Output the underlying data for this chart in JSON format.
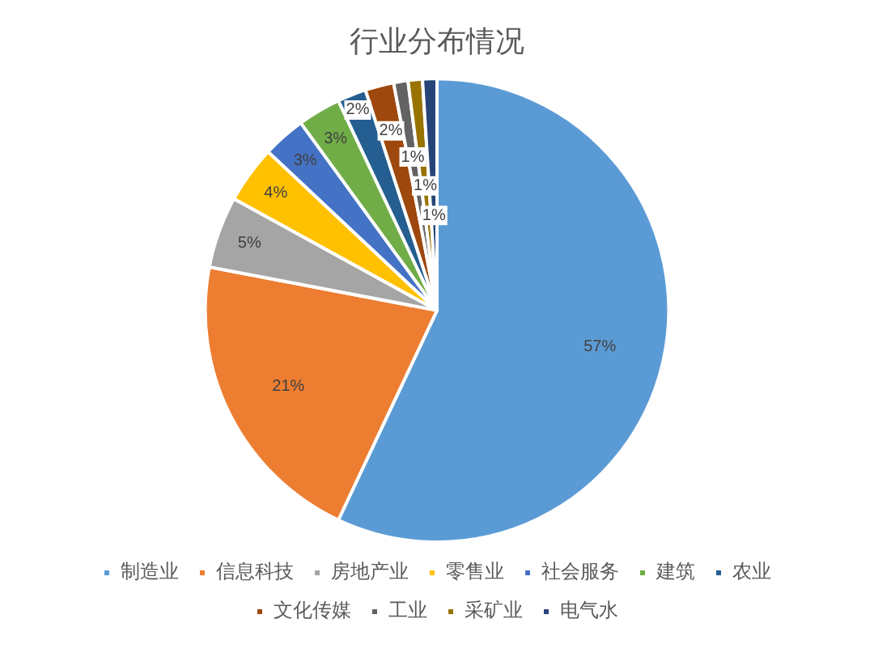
{
  "chart_data": {
    "type": "pie",
    "title": "行业分布情况",
    "categories": [
      "制造业",
      "信息科技",
      "房地产业",
      "零售业",
      "社会服务",
      "建筑",
      "农业",
      "文化传媒",
      "工业",
      "采矿业",
      "电气水"
    ],
    "values": [
      57,
      21,
      5,
      4,
      3,
      3,
      2,
      2,
      1,
      1,
      1
    ],
    "colors": [
      "#5b9bd5",
      "#ed7d31",
      "#a5a5a5",
      "#ffc000",
      "#4472c4",
      "#70ad47",
      "#255e91",
      "#9e480e",
      "#636363",
      "#997300",
      "#264478"
    ],
    "value_labels": [
      "57%",
      "21%",
      "5%",
      "4%",
      "3%",
      "3%",
      "2%",
      "2%",
      "1%",
      "1%",
      "1%"
    ],
    "legend": "bottom"
  }
}
